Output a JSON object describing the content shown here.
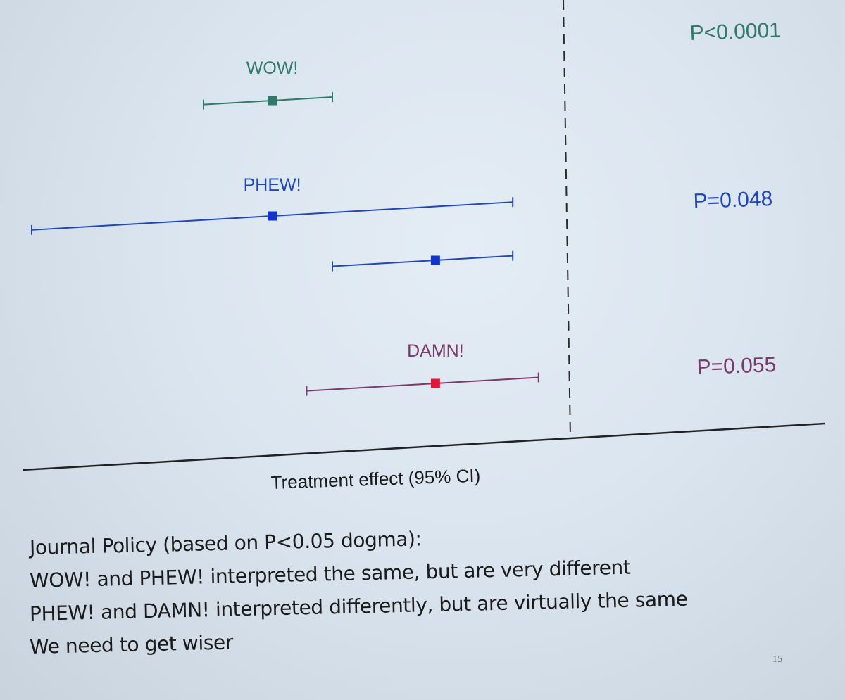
{
  "chart_data": {
    "type": "forest",
    "xlabel": "Treatment effect (95% CI)",
    "reference_line": "dashed vertical line at no effect",
    "rows": [
      {
        "label": "WOW!",
        "estimate": 0.28,
        "ci": [
          0.2,
          0.35
        ],
        "p_text": "P<0.0001",
        "color": "#2f7a68",
        "marker_color": "#2f7a68"
      },
      {
        "label": "PHEW!",
        "estimate": 0.28,
        "ci": [
          0.0,
          0.56
        ],
        "p_text": "P=0.048",
        "color": "#1f47b8",
        "marker_color": "#1233cc"
      },
      {
        "label": "",
        "estimate": 0.47,
        "ci": [
          0.35,
          0.56
        ],
        "p_text": "",
        "color": "#1f47b8",
        "marker_color": "#1233cc"
      },
      {
        "label": "DAMN!",
        "estimate": 0.47,
        "ci": [
          0.32,
          0.59
        ],
        "p_text": "P=0.055",
        "color": "#7b3a6b",
        "marker_color": "#e0183a"
      }
    ]
  },
  "notes": {
    "line1": "Journal Policy (based on P<0.05 dogma):",
    "line2": "WOW! and PHEW! interpreted the same, but are very different",
    "line3": "PHEW! and DAMN! interpreted differently, but are virtually the same",
    "line4": "We need to get wiser"
  },
  "slide_number": "15"
}
